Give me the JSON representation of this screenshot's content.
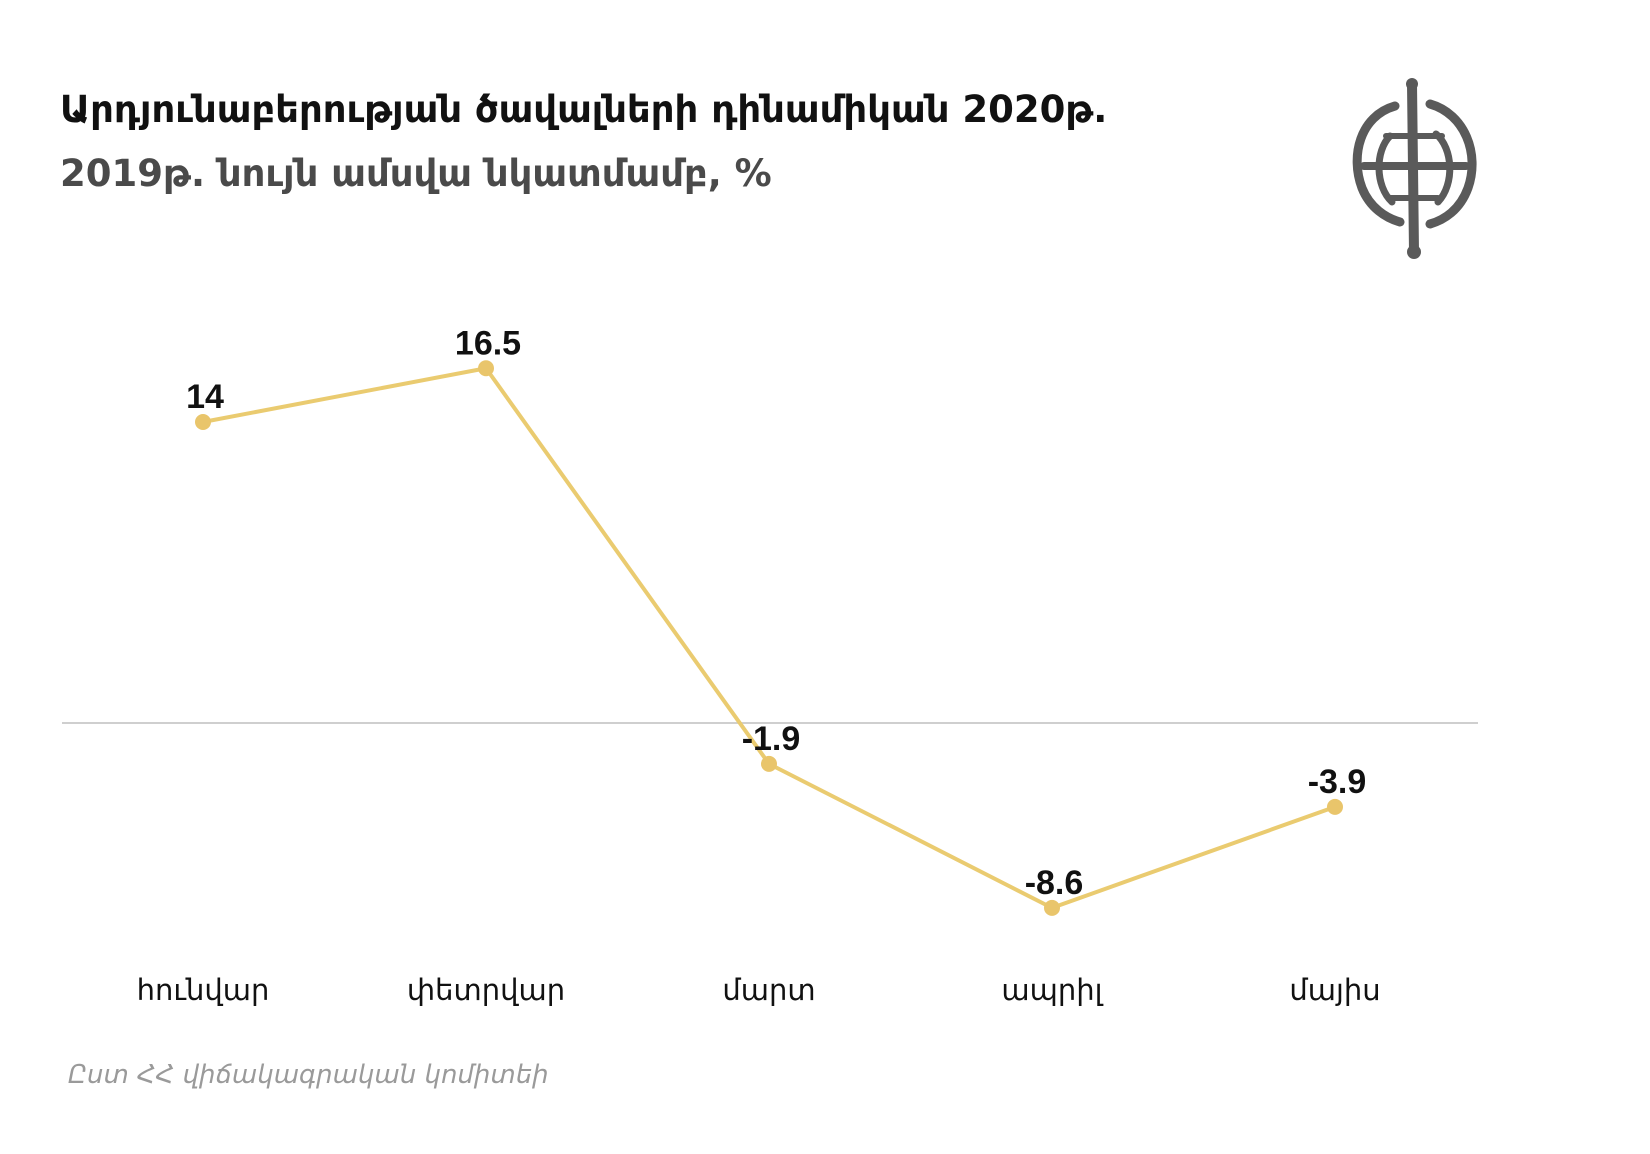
{
  "header": {
    "title_line1": "Արդյունաբերության ծավալների դինամիկան 2020թ.",
    "title_line2": "2019թ. նույն ամսվա նկատմամբ, %"
  },
  "logo": {
    "icon": "globe-emblem-icon"
  },
  "source": {
    "text": "Ըստ ՀՀ վիճակագրական կոմիտեի"
  },
  "colors": {
    "line": "#EACB70",
    "point": "#E9C56B",
    "zero_line": "#CFCFCF",
    "text": "#111111",
    "source_text": "#9A9A9A",
    "logo": "#5A5A5A"
  },
  "chart_data": {
    "type": "line",
    "title": "Արդյունաբերության ծավալների դինամիկան 2020թ. 2019թ. նույն ամսվա նկատմամբ, %",
    "categories": [
      "հունվար",
      "փետրվար",
      "մարտ",
      "ապրիլ",
      "մայիս"
    ],
    "series": [
      {
        "values": [
          14,
          16.5,
          -1.9,
          -8.6,
          -3.9
        ],
        "labels": [
          "14",
          "16.5",
          "-1.9",
          "-8.6",
          "-3.9"
        ]
      }
    ],
    "xlabel": "",
    "ylabel": "",
    "ylim": [
      -12,
      20
    ],
    "grid": false,
    "zero_line": true,
    "legend": "none"
  }
}
